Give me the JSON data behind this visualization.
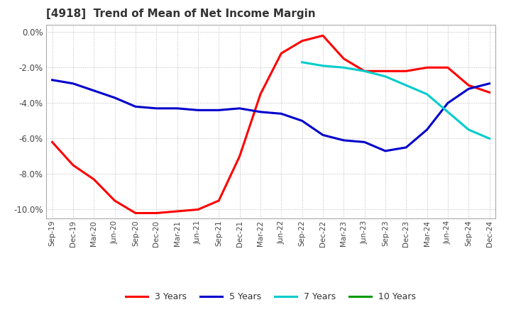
{
  "title": "[4918]  Trend of Mean of Net Income Margin",
  "ylim": [
    -10.5,
    0.4
  ],
  "yticks": [
    0.0,
    -2.0,
    -4.0,
    -6.0,
    -8.0,
    -10.0
  ],
  "background_color": "#ffffff",
  "grid_color": "#bbbbbb",
  "legend_labels": [
    "3 Years",
    "5 Years",
    "7 Years",
    "10 Years"
  ],
  "legend_colors": [
    "#ff0000",
    "#0000cc",
    "#00cccc",
    "#009900"
  ],
  "x_labels": [
    "Sep-19",
    "Dec-19",
    "Mar-20",
    "Jun-20",
    "Sep-20",
    "Dec-20",
    "Mar-21",
    "Jun-21",
    "Sep-21",
    "Dec-21",
    "Mar-22",
    "Jun-22",
    "Sep-22",
    "Dec-22",
    "Mar-23",
    "Jun-23",
    "Sep-23",
    "Dec-23",
    "Mar-24",
    "Jun-24",
    "Sep-24",
    "Dec-24"
  ],
  "series_3y": [
    -6.2,
    -7.5,
    -8.3,
    -9.5,
    -10.2,
    -10.2,
    -10.1,
    -10.0,
    -9.5,
    -7.0,
    -3.5,
    -1.2,
    -0.5,
    -0.2,
    -1.5,
    -2.2,
    -2.2,
    -2.2,
    -2.0,
    -2.0,
    -3.0,
    -3.4
  ],
  "series_5y": [
    -2.7,
    -2.9,
    -3.3,
    -3.7,
    -4.2,
    -4.3,
    -4.3,
    -4.4,
    -4.4,
    -4.3,
    -4.5,
    -4.6,
    -5.0,
    -5.8,
    -6.1,
    -6.2,
    -6.7,
    -6.5,
    -5.5,
    -4.0,
    -3.2,
    -2.9
  ],
  "series_7y": [
    null,
    null,
    null,
    null,
    null,
    null,
    null,
    null,
    null,
    null,
    null,
    null,
    -1.7,
    -1.9,
    -2.0,
    -2.2,
    -2.5,
    -3.0,
    -3.5,
    -4.5,
    -5.5,
    -6.0
  ],
  "series_10y": [
    null,
    null,
    null,
    null,
    null,
    null,
    null,
    null,
    null,
    null,
    null,
    null,
    null,
    null,
    null,
    null,
    null,
    null,
    null,
    null,
    null,
    null
  ]
}
